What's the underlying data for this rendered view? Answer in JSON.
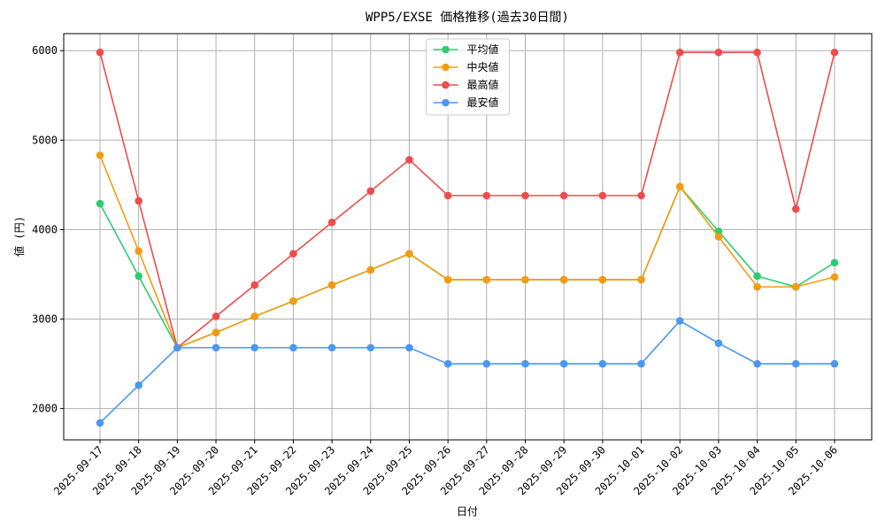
{
  "chart_data": {
    "type": "line",
    "title": "WPP5/EXSE 価格推移(過去30日間)",
    "x_label": "日付",
    "y_label": "値 (円)",
    "categories": [
      "2025-09-17",
      "2025-09-18",
      "2025-09-19",
      "2025-09-20",
      "2025-09-21",
      "2025-09-22",
      "2025-09-23",
      "2025-09-24",
      "2025-09-25",
      "2025-09-26",
      "2025-09-27",
      "2025-09-28",
      "2025-09-29",
      "2025-09-30",
      "2025-10-01",
      "2025-10-02",
      "2025-10-03",
      "2025-10-04",
      "2025-10-05",
      "2025-10-06"
    ],
    "series": [
      {
        "name": "平均値",
        "color": "#2ecc71",
        "values": [
          4290,
          3480,
          2680,
          2850,
          3030,
          3200,
          3380,
          3550,
          3730,
          3440,
          3440,
          3440,
          3440,
          3440,
          3440,
          4480,
          3980,
          3480,
          3360,
          3630
        ]
      },
      {
        "name": "中央値",
        "color": "#f39c12",
        "values": [
          4830,
          3760,
          2680,
          2850,
          3030,
          3200,
          3380,
          3550,
          3730,
          3440,
          3440,
          3440,
          3440,
          3440,
          3440,
          4480,
          3920,
          3360,
          3360,
          3470
        ]
      },
      {
        "name": "最高値",
        "color": "#ef4c4c",
        "values": [
          5980,
          4320,
          2680,
          3030,
          3380,
          3730,
          4080,
          4430,
          4780,
          4380,
          4380,
          4380,
          4380,
          4380,
          4380,
          5980,
          5980,
          5980,
          4230,
          5980
        ]
      },
      {
        "name": "最安値",
        "color": "#4a98f0",
        "values": [
          1840,
          2260,
          2680,
          2680,
          2680,
          2680,
          2680,
          2680,
          2680,
          2500,
          2500,
          2500,
          2500,
          2500,
          2500,
          2980,
          2730,
          2500,
          2500,
          2500
        ]
      }
    ],
    "ylim": [
      1650,
      6190
    ],
    "yticks": [
      2000,
      3000,
      4000,
      5000,
      6000
    ],
    "grid": true,
    "legend": "upper center"
  }
}
